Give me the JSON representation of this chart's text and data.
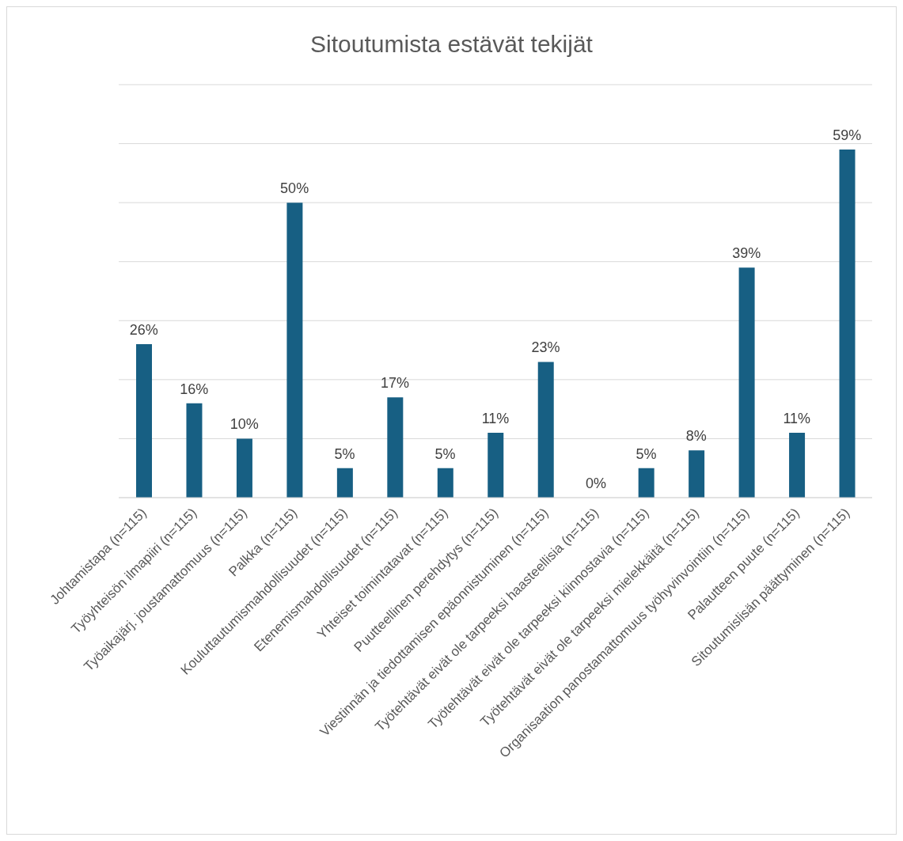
{
  "chart_data": {
    "type": "bar",
    "title": "Sitoutumista estävät tekijät",
    "categories": [
      "Johtamistapa (n=115)",
      "Työyhteisön ilmapiiri (n=115)",
      "Työaikajärj. joustamattomuus (n=115)",
      "Palkka (n=115)",
      "Kouluttautumismahdollisuudet (n=115)",
      "Etenemismahdollisuudet (n=115)",
      "Yhteiset toimintatavat (n=115)",
      "Puutteellinen perehdytys (n=115)",
      "Viestinnän ja tiedottamisen epäonnistuminen (n=115)",
      "Työtehtävät eivät ole tarpeeksi haasteellisia (n=115)",
      "Työtehtävät eivät ole tarpeeksi kiinnostavia (n=115)",
      "Työtehtävät eivät ole tarpeeksi mielekkäitä (n=115)",
      "Organisaation panostamattomuus työhyvinvointiin (n=115)",
      "Palautteen puute (n=115)",
      "Sitoutumislisän päättyminen (n=115)"
    ],
    "values": [
      26,
      16,
      10,
      50,
      5,
      17,
      5,
      11,
      23,
      0,
      5,
      8,
      39,
      11,
      59
    ],
    "value_labels": [
      "26%",
      "16%",
      "10%",
      "50%",
      "5%",
      "17%",
      "5%",
      "11%",
      "23%",
      "0%",
      "5%",
      "8%",
      "39%",
      "11%",
      "59%"
    ],
    "color": "#175f83",
    "ylim": [
      0,
      70
    ],
    "yticks": [
      {
        "value": 0,
        "label": null
      },
      {
        "value": 10,
        "label": null
      },
      {
        "value": 20,
        "label": null
      },
      {
        "value": 30,
        "label": null
      },
      {
        "value": 40,
        "label": null
      },
      {
        "value": 50,
        "label": null
      },
      {
        "value": 60,
        "label": null
      },
      {
        "value": 70,
        "label": null
      }
    ],
    "grid": "y",
    "tick_labels": "x"
  }
}
